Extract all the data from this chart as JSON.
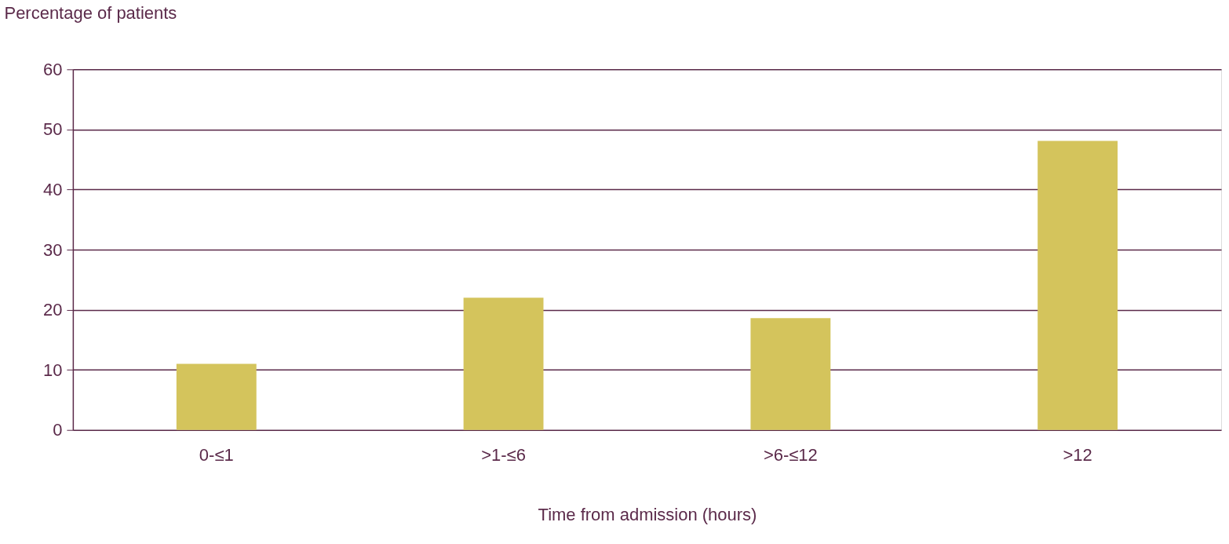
{
  "chart_data": {
    "type": "bar",
    "xlabel": "Time from admission (hours)",
    "ylabel": "Percentage of patients",
    "categories": [
      "0-≤1",
      ">1-≤6",
      ">6-≤12",
      ">12"
    ],
    "values": [
      11,
      22,
      18.6,
      48.1
    ],
    "color": "#d4c45c",
    "ylim": [
      0,
      60
    ],
    "yticks": [
      0,
      10,
      20,
      30,
      40,
      50,
      60
    ],
    "grid": "y"
  }
}
